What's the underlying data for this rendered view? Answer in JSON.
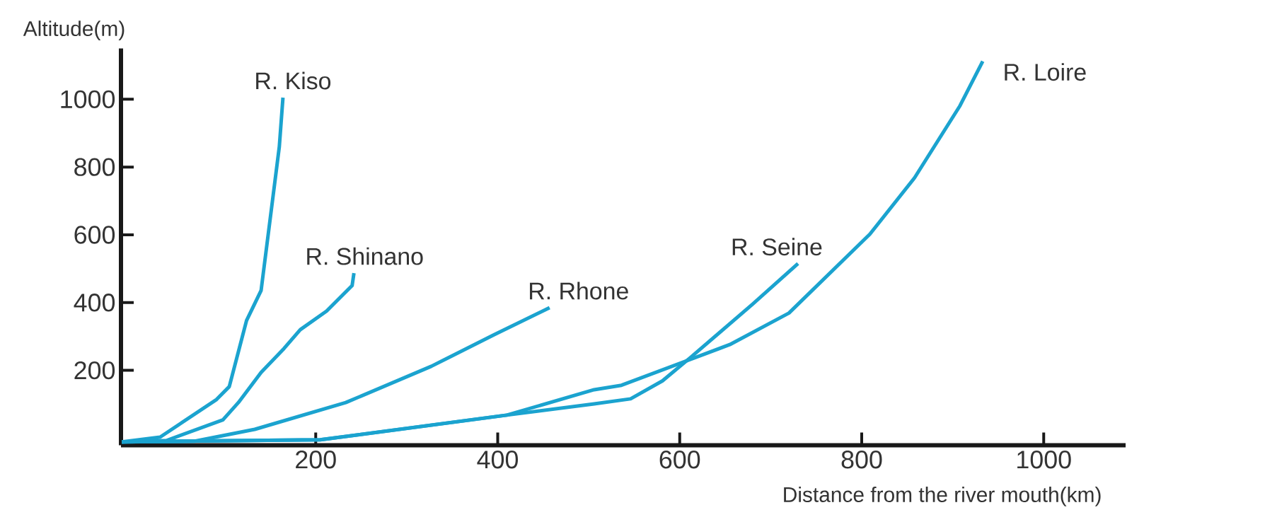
{
  "chart_data": {
    "type": "line",
    "xlabel": "Distance from the river mouth(km)",
    "ylabel": "Altitude(m)",
    "xlim": [
      -14,
      1090
    ],
    "ylim": [
      -21,
      1150
    ],
    "xticks": [
      200,
      400,
      600,
      800,
      1000
    ],
    "yticks": [
      200,
      400,
      600,
      800,
      1000
    ],
    "grid": false,
    "marker": "none",
    "line_style": "solid",
    "series": [
      {
        "name": "R. Kiso",
        "color": "#1ba3cf",
        "x": [
          -13,
          29,
          91,
          105,
          124,
          140,
          160,
          164
        ],
        "values": [
          -11,
          3,
          114,
          152,
          347,
          436,
          860,
          1005
        ]
      },
      {
        "name": "R. Shinano",
        "color": "#1ba3cf",
        "x": [
          -13,
          36,
          98,
          115,
          140,
          165,
          183,
          212,
          240,
          242
        ],
        "values": [
          -11,
          -7,
          54,
          105,
          194,
          264,
          320,
          375,
          450,
          487
        ]
      },
      {
        "name": "R. Rhone",
        "color": "#1ba3cf",
        "x": [
          -13,
          67,
          133,
          233,
          327,
          396,
          457
        ],
        "values": [
          -11,
          -9,
          26,
          105,
          212,
          305,
          385
        ]
      },
      {
        "name": "R. Seine",
        "color": "#1ba3cf",
        "x": [
          -13,
          205,
          410,
          506,
          546,
          581,
          611,
          680,
          730
        ],
        "values": [
          -11,
          -5,
          68,
          101,
          116,
          169,
          236,
          395,
          515
        ]
      },
      {
        "name": "R. Loire",
        "color": "#1ba3cf",
        "x": [
          -13,
          205,
          410,
          506,
          536,
          655,
          720,
          809,
          858,
          908,
          933
        ],
        "values": [
          -11,
          -5,
          68,
          143,
          156,
          276,
          369,
          602,
          768,
          981,
          1112
        ]
      }
    ]
  }
}
